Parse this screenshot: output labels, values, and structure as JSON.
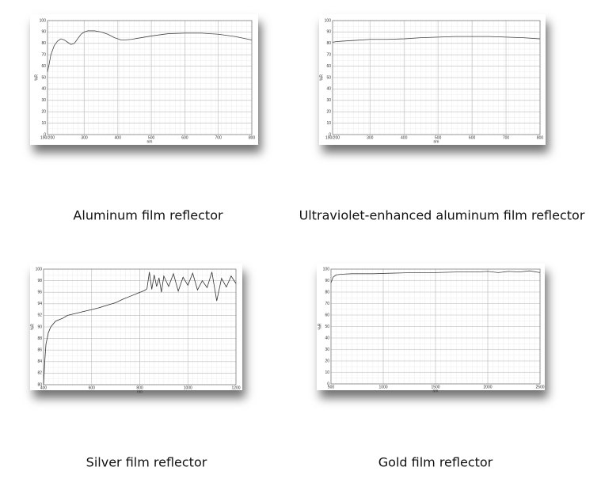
{
  "chart_data": [
    {
      "type": "line",
      "title": "Aluminum film reflector",
      "xlabel": "nm",
      "ylabel": "%R",
      "color": "#444",
      "x": [
        190,
        195,
        200,
        210,
        220,
        230,
        240,
        250,
        260,
        270,
        280,
        290,
        300,
        310,
        330,
        350,
        370,
        390,
        410,
        420,
        440,
        460,
        500,
        550,
        600,
        650,
        700,
        750,
        800
      ],
      "values": [
        55,
        62,
        70,
        78,
        82,
        84,
        83,
        81,
        79,
        80,
        84,
        88,
        90,
        91,
        91,
        90,
        88,
        85,
        83,
        83,
        83.5,
        84.5,
        86.5,
        88.5,
        89,
        89,
        88,
        86,
        83
      ],
      "xlim": [
        190,
        800
      ],
      "xticks": [
        {
          "value": 190,
          "label": "190/200"
        },
        300,
        400,
        500,
        600,
        700,
        800
      ],
      "ylim": [
        0,
        100
      ],
      "yticks": [
        0,
        10,
        20,
        30,
        40,
        50,
        60,
        70,
        80,
        90,
        100
      ],
      "grid": true
    },
    {
      "type": "line",
      "title": "Ultraviolet-enhanced aluminum film reflector",
      "xlabel": "nm",
      "ylabel": "%R",
      "color": "#444",
      "x": [
        190,
        200,
        220,
        250,
        300,
        350,
        400,
        450,
        500,
        550,
        600,
        650,
        700,
        750,
        800
      ],
      "values": [
        81,
        81.5,
        82,
        82.5,
        83.5,
        83.5,
        84,
        85,
        85.5,
        86,
        86,
        86,
        85.5,
        85,
        84
      ],
      "xlim": [
        190,
        800
      ],
      "xticks": [
        {
          "value": 190,
          "label": "190/200"
        },
        300,
        400,
        500,
        600,
        700,
        800
      ],
      "ylim": [
        0,
        100
      ],
      "yticks": [
        0,
        10,
        20,
        30,
        40,
        50,
        60,
        70,
        80,
        90,
        100
      ],
      "grid": true
    },
    {
      "type": "line",
      "title": "Silver film reflector",
      "xlabel": "nm",
      "ylabel": "%R",
      "color": "#333",
      "x": [
        400,
        405,
        410,
        420,
        430,
        450,
        480,
        500,
        530,
        560,
        600,
        630,
        660,
        700,
        730,
        760,
        790,
        820,
        830,
        840,
        850,
        860,
        870,
        880,
        890,
        900,
        920,
        940,
        960,
        980,
        1000,
        1020,
        1040,
        1060,
        1080,
        1100,
        1120,
        1140,
        1160,
        1180,
        1200
      ],
      "values": [
        80,
        84,
        87,
        89,
        90,
        91,
        91.5,
        92,
        92.3,
        92.6,
        93,
        93.3,
        93.7,
        94.2,
        94.8,
        95.3,
        95.8,
        96.3,
        96.6,
        99.5,
        96.5,
        99,
        97,
        98.5,
        96,
        98.8,
        97,
        99.2,
        96.2,
        98.6,
        97.2,
        99.3,
        96.4,
        98,
        96.8,
        99.5,
        94.5,
        98.4,
        96.9,
        98.8,
        97.5
      ],
      "xlim": [
        400,
        1200
      ],
      "xticks": [
        400,
        600,
        800,
        1000,
        1200
      ],
      "ylim": [
        80,
        100
      ],
      "yticks": [
        80,
        82,
        84,
        86,
        88,
        90,
        92,
        94,
        96,
        98,
        100
      ],
      "grid": true
    },
    {
      "type": "line",
      "title": "Gold film reflector",
      "xlabel": "nm",
      "ylabel": "%R",
      "color": "#444",
      "x": [
        500,
        520,
        550,
        600,
        700,
        900,
        1100,
        1300,
        1500,
        1700,
        1900,
        2000,
        2100,
        2200,
        2300,
        2400,
        2500
      ],
      "values": [
        88,
        93,
        95,
        95.5,
        96,
        96,
        96.5,
        97,
        97,
        97.5,
        97.5,
        98,
        97,
        98,
        97.5,
        98.5,
        97
      ],
      "xlim": [
        500,
        2500
      ],
      "xticks": [
        500,
        1000,
        1500,
        2000,
        2500
      ],
      "ylim": [
        0,
        100
      ],
      "yticks": [
        0,
        10,
        20,
        30,
        40,
        50,
        60,
        70,
        80,
        90,
        100
      ],
      "grid": true
    }
  ]
}
